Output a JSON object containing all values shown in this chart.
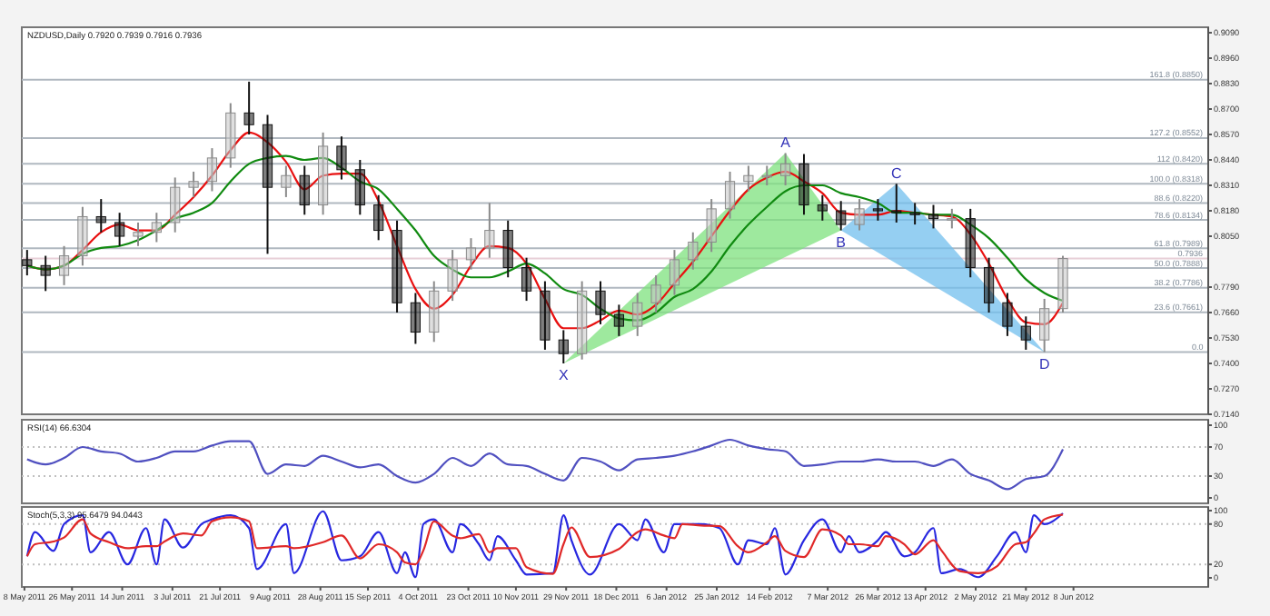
{
  "chart_data": [
    {
      "type": "candlestick",
      "title": "NZDUSD,Daily 0.7920 0.7939 0.7916 0.7936",
      "x": [
        "2011-05-09",
        "2011-05-16",
        "2011-05-23",
        "2011-05-30",
        "2011-06-06",
        "2011-06-13",
        "2011-06-20",
        "2011-06-27",
        "2011-07-04",
        "2011-07-11",
        "2011-07-18",
        "2011-07-25",
        "2011-08-01",
        "2011-08-08",
        "2011-08-15",
        "2011-08-22",
        "2011-08-29",
        "2011-09-05",
        "2011-09-12",
        "2011-09-19",
        "2011-09-26",
        "2011-10-03",
        "2011-10-10",
        "2011-10-17",
        "2011-10-24",
        "2011-10-31",
        "2011-11-07",
        "2011-11-14",
        "2011-11-21",
        "2011-11-28",
        "2011-12-05",
        "2011-12-12",
        "2011-12-19",
        "2011-12-26",
        "2012-01-02",
        "2012-01-09",
        "2012-01-16",
        "2012-01-23",
        "2012-01-30",
        "2012-02-06",
        "2012-02-13",
        "2012-02-20",
        "2012-02-27",
        "2012-03-05",
        "2012-03-12",
        "2012-03-19",
        "2012-03-26",
        "2012-04-02",
        "2012-04-09",
        "2012-04-16",
        "2012-04-23",
        "2012-04-30",
        "2012-05-07",
        "2012-05-14",
        "2012-05-21",
        "2012-05-28",
        "2012-06-04"
      ],
      "ohlc": [
        [
          0.793,
          0.798,
          0.785,
          0.79
        ],
        [
          0.79,
          0.795,
          0.777,
          0.785
        ],
        [
          0.785,
          0.8,
          0.78,
          0.795
        ],
        [
          0.795,
          0.82,
          0.79,
          0.815
        ],
        [
          0.815,
          0.824,
          0.807,
          0.812
        ],
        [
          0.812,
          0.817,
          0.8,
          0.805
        ],
        [
          0.805,
          0.812,
          0.8,
          0.807
        ],
        [
          0.807,
          0.817,
          0.802,
          0.812
        ],
        [
          0.812,
          0.835,
          0.807,
          0.83
        ],
        [
          0.83,
          0.838,
          0.825,
          0.833
        ],
        [
          0.833,
          0.85,
          0.828,
          0.845
        ],
        [
          0.845,
          0.873,
          0.84,
          0.868
        ],
        [
          0.868,
          0.884,
          0.857,
          0.862
        ],
        [
          0.862,
          0.867,
          0.796,
          0.83
        ],
        [
          0.83,
          0.841,
          0.825,
          0.836
        ],
        [
          0.836,
          0.841,
          0.816,
          0.821
        ],
        [
          0.821,
          0.858,
          0.816,
          0.851
        ],
        [
          0.851,
          0.856,
          0.834,
          0.839
        ],
        [
          0.839,
          0.844,
          0.816,
          0.821
        ],
        [
          0.821,
          0.826,
          0.803,
          0.808
        ],
        [
          0.808,
          0.813,
          0.766,
          0.771
        ],
        [
          0.771,
          0.776,
          0.75,
          0.756
        ],
        [
          0.756,
          0.782,
          0.751,
          0.777
        ],
        [
          0.777,
          0.798,
          0.772,
          0.793
        ],
        [
          0.793,
          0.804,
          0.788,
          0.799
        ],
        [
          0.799,
          0.822,
          0.794,
          0.808
        ],
        [
          0.808,
          0.813,
          0.784,
          0.789
        ],
        [
          0.789,
          0.794,
          0.772,
          0.777
        ],
        [
          0.777,
          0.782,
          0.747,
          0.752
        ],
        [
          0.752,
          0.757,
          0.74,
          0.745
        ],
        [
          0.745,
          0.782,
          0.742,
          0.777
        ],
        [
          0.777,
          0.782,
          0.76,
          0.765
        ],
        [
          0.765,
          0.77,
          0.754,
          0.759
        ],
        [
          0.759,
          0.776,
          0.754,
          0.771
        ],
        [
          0.771,
          0.785,
          0.766,
          0.78
        ],
        [
          0.78,
          0.798,
          0.775,
          0.793
        ],
        [
          0.793,
          0.807,
          0.788,
          0.802
        ],
        [
          0.802,
          0.824,
          0.797,
          0.819
        ],
        [
          0.819,
          0.838,
          0.814,
          0.833
        ],
        [
          0.833,
          0.841,
          0.828,
          0.836
        ],
        [
          0.836,
          0.841,
          0.831,
          0.836
        ],
        [
          0.836,
          0.8475,
          0.831,
          0.842
        ],
        [
          0.842,
          0.847,
          0.816,
          0.821
        ],
        [
          0.821,
          0.826,
          0.813,
          0.818
        ],
        [
          0.818,
          0.823,
          0.808,
          0.811
        ],
        [
          0.811,
          0.824,
          0.808,
          0.819
        ],
        [
          0.819,
          0.824,
          0.813,
          0.818
        ],
        [
          0.818,
          0.8318,
          0.812,
          0.817
        ],
        [
          0.817,
          0.822,
          0.811,
          0.816
        ],
        [
          0.816,
          0.821,
          0.809,
          0.814
        ],
        [
          0.814,
          0.819,
          0.809,
          0.814
        ],
        [
          0.814,
          0.819,
          0.784,
          0.789
        ],
        [
          0.789,
          0.794,
          0.766,
          0.771
        ],
        [
          0.771,
          0.776,
          0.754,
          0.759
        ],
        [
          0.759,
          0.764,
          0.747,
          0.752
        ],
        [
          0.752,
          0.773,
          0.7458,
          0.768
        ],
        [
          0.768,
          0.795,
          0.766,
          0.7936
        ]
      ],
      "series": [
        {
          "type": "line",
          "color": "#e81010",
          "values": [
            0.79,
            0.788,
            0.79,
            0.798,
            0.807,
            0.811,
            0.808,
            0.808,
            0.816,
            0.825,
            0.836,
            0.849,
            0.858,
            0.853,
            0.843,
            0.829,
            0.836,
            0.837,
            0.837,
            0.823,
            0.8,
            0.778,
            0.768,
            0.775,
            0.79,
            0.8,
            0.799,
            0.791,
            0.773,
            0.758,
            0.758,
            0.762,
            0.767,
            0.765,
            0.77,
            0.781,
            0.792,
            0.805,
            0.818,
            0.829,
            0.835,
            0.838,
            0.833,
            0.827,
            0.817,
            0.816,
            0.816,
            0.818,
            0.817,
            0.816,
            0.815,
            0.806,
            0.791,
            0.773,
            0.761,
            0.76,
            0.771
          ]
        },
        {
          "type": "line",
          "color": "#108a10",
          "values": [
            0.79,
            0.788,
            0.79,
            0.796,
            0.799,
            0.8,
            0.803,
            0.808,
            0.814,
            0.817,
            0.822,
            0.833,
            0.842,
            0.845,
            0.846,
            0.844,
            0.845,
            0.84,
            0.833,
            0.829,
            0.819,
            0.808,
            0.795,
            0.788,
            0.784,
            0.784,
            0.787,
            0.791,
            0.786,
            0.778,
            0.775,
            0.768,
            0.763,
            0.762,
            0.766,
            0.774,
            0.778,
            0.787,
            0.8,
            0.811,
            0.82,
            0.828,
            0.831,
            0.831,
            0.827,
            0.825,
            0.822,
            0.817,
            0.817,
            0.816,
            0.816,
            0.811,
            0.804,
            0.794,
            0.783,
            0.776,
            0.772
          ]
        }
      ],
      "xlim": [
        "2011-05-07",
        "2012-07-29"
      ],
      "ylim": [
        0.714,
        0.9118
      ],
      "yticks": [
        {
          "value": 0.909,
          "label": "0.9090"
        },
        {
          "value": 0.896,
          "label": "0.8960"
        },
        {
          "value": 0.883,
          "label": "0.8830"
        },
        {
          "value": 0.87,
          "label": "0.8700"
        },
        {
          "value": 0.857,
          "label": "0.8570"
        },
        {
          "value": 0.844,
          "label": "0.8440"
        },
        {
          "value": 0.831,
          "label": "0.8310"
        },
        {
          "value": 0.818,
          "label": "0.8180"
        },
        {
          "value": 0.805,
          "label": "0.8050"
        },
        {
          "value": 0.779,
          "label": "0.7790"
        },
        {
          "value": 0.766,
          "label": "0.7660"
        },
        {
          "value": 0.753,
          "label": "0.7530"
        },
        {
          "value": 0.74,
          "label": "0.7400"
        },
        {
          "value": 0.727,
          "label": "0.7270"
        },
        {
          "value": 0.714,
          "label": "0.7140"
        }
      ],
      "tick_labels": "y",
      "ref_lines": [
        {
          "axis": "y",
          "value": 0.885,
          "label": "161.8 (0.8850)",
          "color": "#b0b8c0"
        },
        {
          "axis": "y",
          "value": 0.8552,
          "label": "127.2 (0.8552)",
          "color": "#b0b8c0"
        },
        {
          "axis": "y",
          "value": 0.842,
          "label": "112 (0.8420)",
          "color": "#b0b8c0"
        },
        {
          "axis": "y",
          "value": 0.8318,
          "label": "100.0 (0.8318)",
          "color": "#b0b8c0"
        },
        {
          "axis": "y",
          "value": 0.822,
          "label": "88.6 (0.8220)",
          "color": "#b0b8c0"
        },
        {
          "axis": "y",
          "value": 0.8134,
          "label": "78.6 (0.8134)",
          "color": "#b0b8c0"
        },
        {
          "axis": "y",
          "value": 0.7989,
          "label": "61.8 (0.7989)",
          "color": "#b0b8c0"
        },
        {
          "axis": "y",
          "value": 0.7888,
          "label": "50.0 (0.7888)",
          "color": "#b0b8c0"
        },
        {
          "axis": "y",
          "value": 0.7786,
          "label": "38.2 (0.7786)",
          "color": "#b0b8c0"
        },
        {
          "axis": "y",
          "value": 0.7661,
          "label": "23.6 (0.7661)",
          "color": "#b0b8c0"
        },
        {
          "axis": "y",
          "value": 0.7458,
          "color": "#b0b8c0"
        },
        {
          "axis": "y",
          "value": 0.7936,
          "label": "0.7936",
          "color": "#e8d0d8"
        }
      ],
      "annotations": [
        {
          "text": "X",
          "x": "2011-11-28",
          "y": 0.74
        },
        {
          "text": "A",
          "x": "2012-02-20",
          "y": 0.8475
        },
        {
          "text": "B",
          "x": "2012-03-12",
          "y": 0.808
        },
        {
          "text": "C",
          "x": "2012-04-02",
          "y": 0.8318
        },
        {
          "text": "D",
          "x": "2012-05-28",
          "y": 0.7458
        },
        {
          "text": "0.0",
          "x": "2012-07-25",
          "y": 0.7458
        }
      ]
    },
    {
      "type": "line",
      "title": "RSI(14) 66.6304",
      "x": [
        "2011-05-09",
        "2011-05-16",
        "2011-05-23",
        "2011-05-30",
        "2011-06-06",
        "2011-06-13",
        "2011-06-20",
        "2011-06-27",
        "2011-07-04",
        "2011-07-11",
        "2011-07-18",
        "2011-07-25",
        "2011-08-01",
        "2011-08-08",
        "2011-08-15",
        "2011-08-22",
        "2011-08-29",
        "2011-09-05",
        "2011-09-12",
        "2011-09-19",
        "2011-09-26",
        "2011-10-03",
        "2011-10-10",
        "2011-10-17",
        "2011-10-24",
        "2011-10-31",
        "2011-11-07",
        "2011-11-14",
        "2011-11-21",
        "2011-11-28",
        "2011-12-05",
        "2011-12-12",
        "2011-12-19",
        "2011-12-26",
        "2012-01-02",
        "2012-01-09",
        "2012-01-16",
        "2012-01-23",
        "2012-01-30",
        "2012-02-06",
        "2012-02-13",
        "2012-02-20",
        "2012-02-27",
        "2012-03-05",
        "2012-03-12",
        "2012-03-19",
        "2012-03-26",
        "2012-04-02",
        "2012-04-09",
        "2012-04-16",
        "2012-04-23",
        "2012-04-30",
        "2012-05-07",
        "2012-05-14",
        "2012-05-21",
        "2012-05-28",
        "2012-06-04"
      ],
      "series": [
        {
          "color": "#5050c0",
          "values": [
            53,
            46,
            55,
            70,
            64,
            61,
            50,
            55,
            64,
            64,
            72,
            78,
            78,
            33,
            46,
            44,
            58,
            50,
            42,
            46,
            30,
            21,
            33,
            55,
            44,
            61,
            46,
            44,
            33,
            24,
            55,
            50,
            38,
            53,
            55,
            58,
            64,
            72,
            80,
            72,
            67,
            64,
            44,
            46,
            50,
            50,
            53,
            50,
            50,
            44,
            53,
            33,
            24,
            12,
            26,
            30,
            67
          ]
        }
      ],
      "xlim": [
        "2011-05-07",
        "2012-07-29"
      ],
      "ylim": [
        -7.5,
        107.5
      ],
      "yticks": [
        100,
        70,
        30,
        0
      ],
      "tick_labels": "y",
      "ref_lines": [
        {
          "axis": "y",
          "value": 70,
          "color": "#c0c0c0",
          "line_style": "dotted"
        },
        {
          "axis": "y",
          "value": 30,
          "color": "#c0c0c0",
          "line_style": "dotted"
        }
      ]
    },
    {
      "type": "line",
      "title": "Stoch(5,3,3) 95.6479 94.0443",
      "x": [
        "2011-05-09",
        "2011-05-12",
        "2011-05-19",
        "2011-05-23",
        "2011-05-30",
        "2011-06-02",
        "2011-06-09",
        "2011-06-16",
        "2011-06-23",
        "2011-06-27",
        "2011-06-30",
        "2011-07-07",
        "2011-07-14",
        "2011-07-18",
        "2011-07-25",
        "2011-08-01",
        "2011-08-04",
        "2011-08-15",
        "2011-08-18",
        "2011-08-29",
        "2011-09-05",
        "2011-09-12",
        "2011-09-19",
        "2011-09-26",
        "2011-09-29",
        "2011-10-03",
        "2011-10-06",
        "2011-10-10",
        "2011-10-17",
        "2011-10-20",
        "2011-10-27",
        "2011-10-31",
        "2011-11-03",
        "2011-11-10",
        "2011-11-14",
        "2011-11-24",
        "2011-11-28",
        "2011-12-01",
        "2011-12-08",
        "2011-12-19",
        "2011-12-26",
        "2011-12-29",
        "2012-01-05",
        "2012-01-09",
        "2012-01-12",
        "2012-01-19",
        "2012-01-26",
        "2012-02-02",
        "2012-02-06",
        "2012-02-13",
        "2012-02-16",
        "2012-02-20",
        "2012-02-27",
        "2012-03-05",
        "2012-03-12",
        "2012-03-15",
        "2012-03-19",
        "2012-03-26",
        "2012-03-29",
        "2012-04-05",
        "2012-04-09",
        "2012-04-16",
        "2012-04-19",
        "2012-04-26",
        "2012-05-03",
        "2012-05-10",
        "2012-05-17",
        "2012-05-21",
        "2012-05-24",
        "2012-05-28",
        "2012-06-04"
      ],
      "series": [
        {
          "color": "#2828e0",
          "values": [
            32,
            68,
            40,
            80,
            93,
            38,
            68,
            20,
            74,
            20,
            87,
            45,
            80,
            87,
            93,
            74,
            13,
            80,
            7,
            99,
            26,
            32,
            68,
            7,
            38,
            1,
            80,
            87,
            38,
            80,
            50,
            26,
            62,
            26,
            5,
            7,
            93,
            56,
            5,
            80,
            56,
            87,
            38,
            80,
            80,
            80,
            74,
            20,
            56,
            50,
            74,
            5,
            56,
            87,
            38,
            62,
            38,
            56,
            68,
            32,
            38,
            74,
            7,
            13,
            1,
            32,
            68,
            38,
            93,
            80,
            96
          ]
        },
        {
          "color": "#e02828",
          "values": [
            32,
            50,
            54,
            60,
            87,
            66,
            53,
            44,
            47,
            47,
            54,
            66,
            63,
            84,
            90,
            84,
            44,
            47,
            44,
            53,
            63,
            29,
            50,
            38,
            23,
            20,
            41,
            84,
            63,
            59,
            65,
            38,
            44,
            44,
            16,
            6,
            50,
            75,
            31,
            43,
            68,
            72,
            63,
            59,
            80,
            78,
            77,
            47,
            38,
            53,
            62,
            40,
            31,
            72,
            63,
            50,
            50,
            47,
            62,
            50,
            35,
            56,
            41,
            10,
            7,
            17,
            50,
            53,
            66,
            87,
            94
          ]
        }
      ],
      "xlim": [
        "2011-05-07",
        "2012-07-29"
      ],
      "ylim": [
        -13.5,
        105.4
      ],
      "yticks": [
        100,
        80,
        20,
        0
      ],
      "xticks": [
        {
          "value": "2011-05-08",
          "label": "8 May 2011"
        },
        {
          "value": "2011-05-26",
          "label": "26 May 2011"
        },
        {
          "value": "2011-06-14",
          "label": "14 Jun 2011"
        },
        {
          "value": "2011-07-03",
          "label": "3 Jul 2011"
        },
        {
          "value": "2011-07-21",
          "label": "21 Jul 2011"
        },
        {
          "value": "2011-08-09",
          "label": "9 Aug 2011"
        },
        {
          "value": "2011-08-28",
          "label": "28 Aug 2011"
        },
        {
          "value": "2011-09-15",
          "label": "15 Sep 2011"
        },
        {
          "value": "2011-10-04",
          "label": "4 Oct 2011"
        },
        {
          "value": "2011-10-23",
          "label": "23 Oct 2011"
        },
        {
          "value": "2011-11-10",
          "label": "10 Nov 2011"
        },
        {
          "value": "2011-11-29",
          "label": "29 Nov 2011"
        },
        {
          "value": "2011-12-18",
          "label": "18 Dec 2011"
        },
        {
          "value": "2012-01-06",
          "label": "6 Jan 2012"
        },
        {
          "value": "2012-01-25",
          "label": "25 Jan 2012"
        },
        {
          "value": "2012-02-14",
          "label": "14 Feb 2012"
        },
        {
          "value": "2012-03-07",
          "label": "7 Mar 2012"
        },
        {
          "value": "2012-03-26",
          "label": "26 Mar 2012"
        },
        {
          "value": "2012-04-13",
          "label": "13 Apr 2012"
        },
        {
          "value": "2012-05-02",
          "label": "2 May 2012"
        },
        {
          "value": "2012-05-21",
          "label": "21 May 2012"
        },
        {
          "value": "2012-06-08",
          "label": "8 Jun 2012"
        }
      ],
      "ref_lines": [
        {
          "axis": "y",
          "value": 80,
          "color": "#c0c0c0",
          "line_style": "dotted"
        },
        {
          "axis": "y",
          "value": 20,
          "color": "#c0c0c0",
          "line_style": "dotted"
        }
      ]
    }
  ]
}
